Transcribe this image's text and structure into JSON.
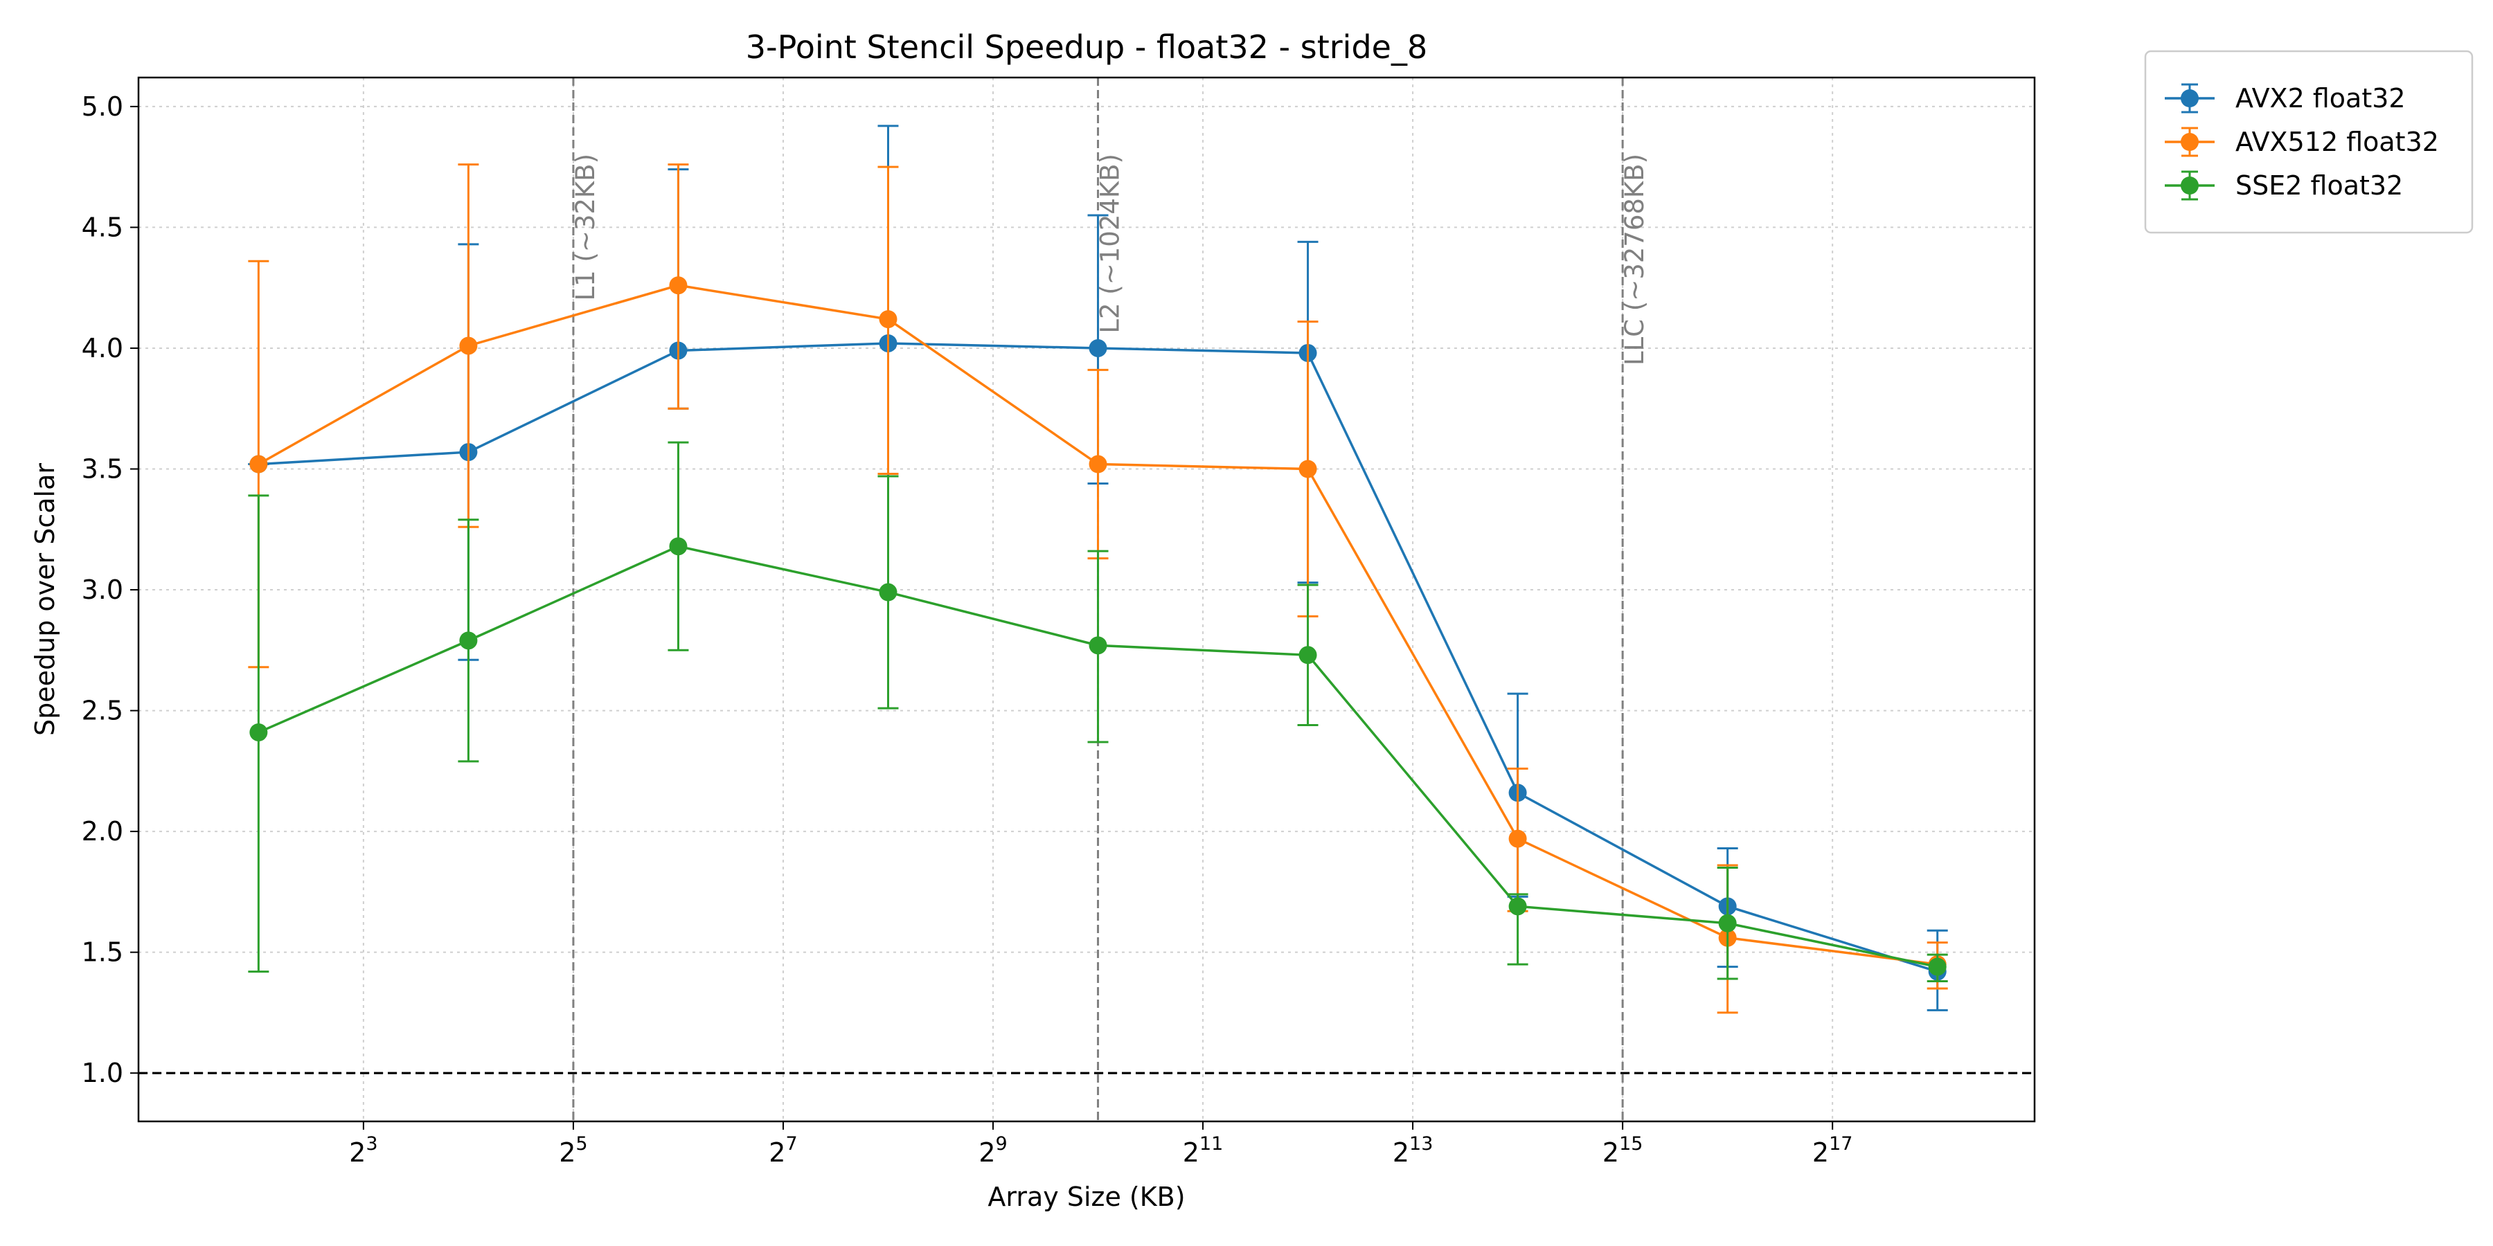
{
  "chart_data": {
    "type": "line",
    "title": "3-Point Stencil Speedup - float32 - stride_8",
    "xlabel": "Array Size (KB)",
    "ylabel": "Speedup over Scalar",
    "x_scale": "log2",
    "x": [
      4,
      16,
      64,
      256,
      1024,
      4096,
      16384,
      65536,
      262144
    ],
    "xlim": [
      1.81,
      498000
    ],
    "ylim": [
      0.8,
      5.12
    ],
    "xticks": [
      {
        "value": 8,
        "base": "2",
        "exp": "3"
      },
      {
        "value": 32,
        "base": "2",
        "exp": "5"
      },
      {
        "value": 128,
        "base": "2",
        "exp": "7"
      },
      {
        "value": 512,
        "base": "2",
        "exp": "9"
      },
      {
        "value": 2048,
        "base": "2",
        "exp": "11"
      },
      {
        "value": 8192,
        "base": "2",
        "exp": "13"
      },
      {
        "value": 32768,
        "base": "2",
        "exp": "15"
      },
      {
        "value": 131072,
        "base": "2",
        "exp": "17"
      }
    ],
    "yticks": [
      "1.0",
      "1.5",
      "2.0",
      "2.5",
      "3.0",
      "3.5",
      "4.0",
      "4.5",
      "5.0"
    ],
    "grid": true,
    "legend_position": "outside-top-right",
    "reference_line": {
      "y": 1.0,
      "style": "dashed",
      "color": "#000000"
    },
    "cache_lines": [
      {
        "x": 32,
        "label": "L1 (~32KB)"
      },
      {
        "x": 1024,
        "label": "L2 (~1024KB)"
      },
      {
        "x": 32768,
        "label": "LLC (~32768KB)"
      }
    ],
    "series": [
      {
        "name": "AVX2 float32",
        "color": "#1f77b4",
        "values": [
          3.52,
          3.57,
          3.99,
          4.02,
          4.0,
          3.98,
          2.16,
          1.69,
          1.42
        ],
        "err_lower": [
          3.52,
          2.71,
          3.75,
          3.47,
          3.44,
          3.03,
          1.73,
          1.44,
          1.26
        ],
        "err_upper": [
          3.52,
          4.43,
          4.74,
          4.92,
          4.55,
          4.44,
          2.57,
          1.93,
          1.59
        ]
      },
      {
        "name": "AVX512 float32",
        "color": "#ff7f0e",
        "values": [
          3.52,
          4.01,
          4.26,
          4.12,
          3.52,
          3.5,
          1.97,
          1.56,
          1.45
        ],
        "err_lower": [
          2.68,
          3.26,
          3.75,
          3.48,
          3.13,
          2.89,
          1.67,
          1.25,
          1.35
        ],
        "err_upper": [
          4.36,
          4.76,
          4.76,
          4.75,
          3.91,
          4.11,
          2.26,
          1.86,
          1.54
        ]
      },
      {
        "name": "SSE2 float32",
        "color": "#2ca02c",
        "values": [
          2.41,
          2.79,
          3.18,
          2.99,
          2.77,
          2.73,
          1.69,
          1.62,
          1.44
        ],
        "err_lower": [
          1.42,
          2.29,
          2.75,
          2.51,
          2.37,
          2.44,
          1.45,
          1.39,
          1.38
        ],
        "err_upper": [
          3.39,
          3.29,
          3.61,
          3.47,
          3.16,
          3.02,
          1.74,
          1.85,
          1.49
        ]
      }
    ]
  }
}
